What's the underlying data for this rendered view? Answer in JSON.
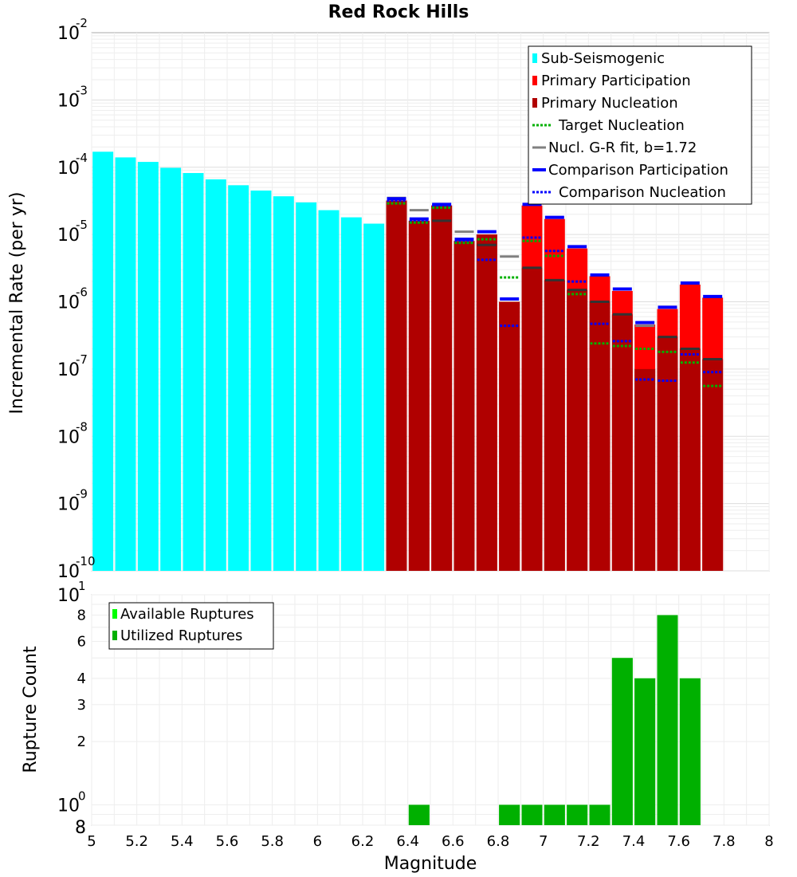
{
  "chart_data": [
    {
      "type": "bar",
      "title": "Red Rock Hills",
      "ylabel": "Incremental Rate (per yr)",
      "yscale": "log",
      "ylim": [
        1e-10,
        0.01
      ],
      "xlim": [
        5,
        8
      ],
      "y_ticks": [
        {
          "base": "10",
          "exp": "-10",
          "value": 1e-10
        },
        {
          "base": "10",
          "exp": "-9",
          "value": 1e-09
        },
        {
          "base": "10",
          "exp": "-8",
          "value": 1e-08
        },
        {
          "base": "10",
          "exp": "-7",
          "value": 1e-07
        },
        {
          "base": "10",
          "exp": "-6",
          "value": 1e-06
        },
        {
          "base": "10",
          "exp": "-5",
          "value": 1e-05
        },
        {
          "base": "10",
          "exp": "-4",
          "value": 0.0001
        },
        {
          "base": "10",
          "exp": "-3",
          "value": 0.001
        },
        {
          "base": "10",
          "exp": "-2",
          "value": 0.01
        }
      ],
      "legend": {
        "position": "top-right",
        "entries": [
          {
            "label": "Sub-Seismogenic",
            "color": "#00ffff",
            "style": "bar"
          },
          {
            "label": "Primary Participation",
            "color": "#ff0000",
            "style": "bar"
          },
          {
            "label": "Primary Nucleation",
            "color": "#b00000",
            "style": "bar"
          },
          {
            "label": "Target Nucleation",
            "color": "#00b000",
            "style": "dotted"
          },
          {
            "label": "Nucl. G-R fit, b=1.72",
            "color": "#808080",
            "style": "solid"
          },
          {
            "label": "Comparison Participation",
            "color": "#0000ff",
            "style": "thick"
          },
          {
            "label": "Comparison Nucleation",
            "color": "#0000ff",
            "style": "dotted"
          }
        ]
      },
      "bin_width": 0.1,
      "sub_seismogenic": {
        "color": "#00ffff",
        "x": [
          5.05,
          5.15,
          5.25,
          5.35,
          5.45,
          5.55,
          5.65,
          5.75,
          5.85,
          5.95,
          6.05,
          6.15,
          6.25
        ],
        "values": [
          0.00017,
          0.00014,
          0.00012,
          9.8e-05,
          8.2e-05,
          6.6e-05,
          5.4e-05,
          4.5e-05,
          3.7e-05,
          3e-05,
          2.3e-05,
          1.8e-05,
          1.45e-05
        ]
      },
      "x": [
        6.35,
        6.45,
        6.55,
        6.65,
        6.75,
        6.85,
        6.95,
        7.05,
        7.15,
        7.25,
        7.35,
        7.45,
        7.55,
        7.65,
        7.75
      ],
      "series": [
        {
          "name": "Primary Participation",
          "color": "#ff0000",
          "values": [
            3.2e-05,
            1.6e-05,
            2.7e-05,
            8e-06,
            1e-05,
            1e-06,
            2.7e-05,
            1.7e-05,
            6.2e-06,
            2.4e-06,
            1.45e-06,
            4.6e-07,
            7.8e-07,
            1.8e-06,
            1.15e-06
          ]
        },
        {
          "name": "Primary Nucleation",
          "color": "#b00000",
          "values": [
            3.2e-05,
            1.6e-05,
            2.7e-05,
            8e-06,
            1e-05,
            1e-06,
            3.2e-06,
            2.1e-06,
            1.5e-06,
            1e-06,
            6.5e-07,
            1e-07,
            3e-07,
            2e-07,
            1.4e-07
          ]
        },
        {
          "name": "Target Nucleation",
          "color": "#00b000",
          "values": [
            2.9e-05,
            1.5e-05,
            2.5e-05,
            7.5e-06,
            8.5e-06,
            2.3e-06,
            8e-06,
            4.8e-06,
            1.3e-06,
            2.4e-07,
            2.2e-07,
            2e-07,
            1.8e-07,
            1.25e-07,
            5.6e-08
          ]
        },
        {
          "name": "Nucl. G-R fit, b=1.72",
          "color": "#808080",
          "values": [
            3.5e-05,
            2.3e-05,
            1.6e-05,
            1.1e-05,
            7e-06,
            4.7e-06,
            3.2e-06,
            2.1e-06,
            1.5e-06,
            1e-06,
            6.5e-07,
            4.4e-07,
            3e-07,
            2e-07,
            1.4e-07
          ]
        },
        {
          "name": "Comparison Participation",
          "color": "#0000ff",
          "values": [
            3.4e-05,
            1.7e-05,
            2.8e-05,
            8.5e-06,
            1.1e-05,
            1.1e-06,
            2.8e-05,
            1.8e-05,
            6.6e-06,
            2.5e-06,
            1.55e-06,
            4.9e-07,
            8.3e-07,
            1.9e-06,
            1.2e-06
          ]
        },
        {
          "name": "Comparison Nucleation",
          "color": "#0000ff",
          "values": [
            3.2e-05,
            1.6e-05,
            2.7e-05,
            8e-06,
            4.2e-06,
            4.4e-07,
            9e-06,
            5.7e-06,
            2e-06,
            4.7e-07,
            2.6e-07,
            7e-08,
            6.7e-08,
            1.65e-07,
            9e-08
          ]
        }
      ]
    },
    {
      "type": "bar",
      "xlabel": "Magnitude",
      "ylabel": "Rupture Count",
      "yscale": "log",
      "ylim": [
        0.8,
        10
      ],
      "xlim": [
        5,
        8
      ],
      "x_ticks": [
        "5",
        "5.2",
        "5.4",
        "5.6",
        "5.8",
        "6",
        "6.2",
        "6.4",
        "6.6",
        "6.8",
        "7",
        "7.2",
        "7.4",
        "7.6",
        "7.8",
        "8"
      ],
      "y_major_ticks": [
        {
          "base": "10",
          "exp": "0",
          "value": 1
        },
        {
          "base": "10",
          "exp": "1",
          "value": 10
        }
      ],
      "y_minor_ticks": [
        {
          "label": "8",
          "value": 0.8
        },
        {
          "label": "2",
          "value": 2
        },
        {
          "label": "3",
          "value": 3
        },
        {
          "label": "4",
          "value": 4
        },
        {
          "label": "6",
          "value": 6
        },
        {
          "label": "8",
          "value": 8
        }
      ],
      "legend": {
        "position": "top-left",
        "entries": [
          {
            "label": "Available Ruptures",
            "color": "#00ff00"
          },
          {
            "label": "Utilized Ruptures",
            "color": "#00b000"
          }
        ]
      },
      "x": [
        6.45,
        6.85,
        6.95,
        7.05,
        7.15,
        7.25,
        7.35,
        7.45,
        7.55,
        7.65
      ],
      "series": [
        {
          "name": "Available Ruptures",
          "color": "#00ff00",
          "values": [
            1,
            1,
            1,
            1,
            1,
            1,
            5,
            4,
            8,
            4
          ]
        },
        {
          "name": "Utilized Ruptures",
          "color": "#00b000",
          "values": [
            1,
            1,
            1,
            1,
            1,
            1,
            5,
            4,
            8,
            4
          ]
        }
      ]
    }
  ]
}
